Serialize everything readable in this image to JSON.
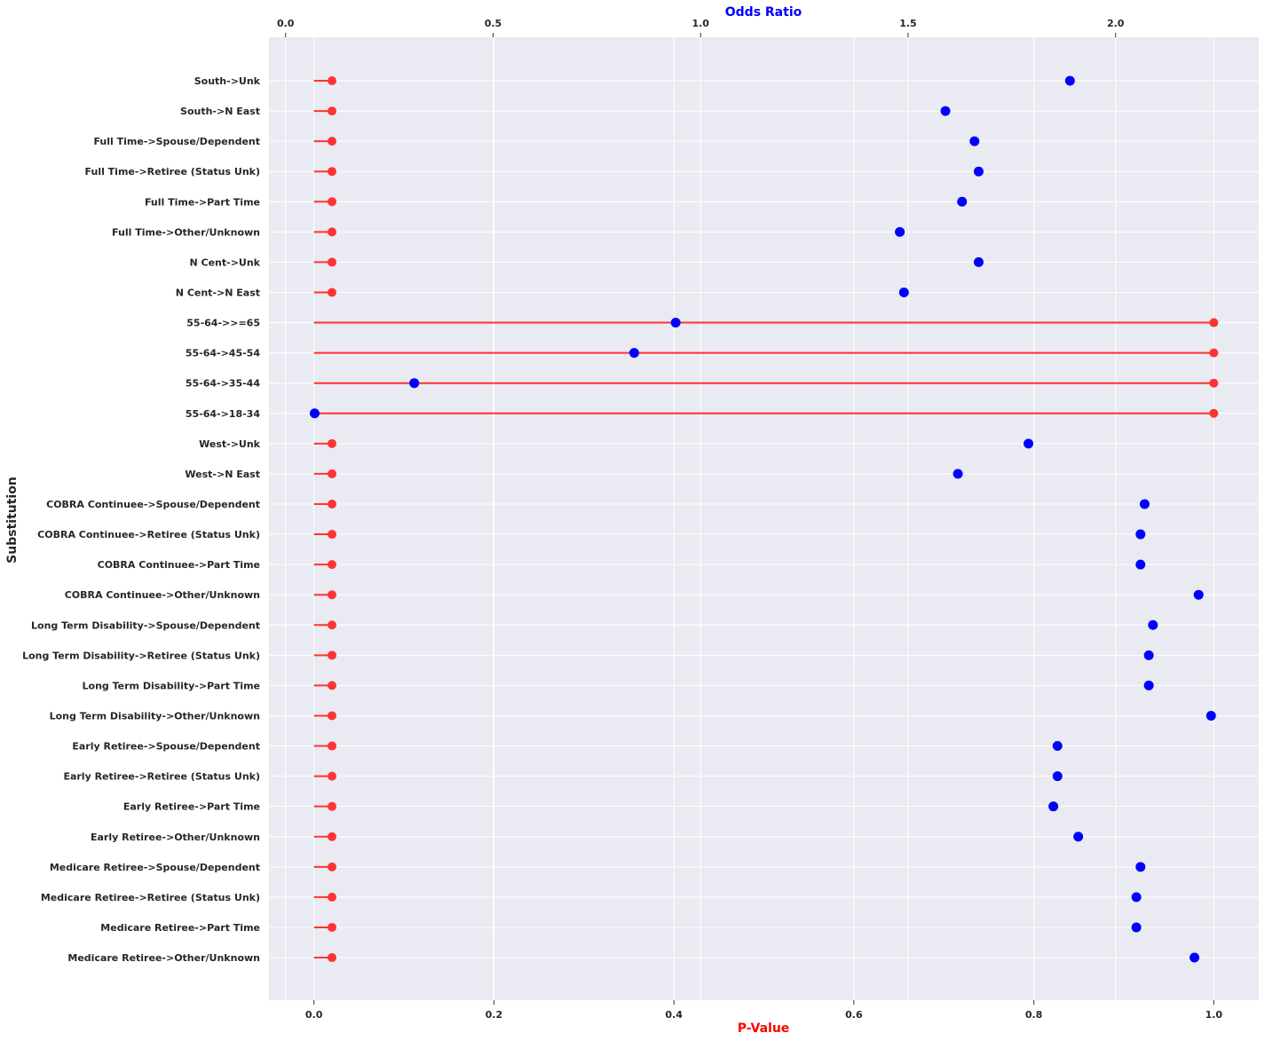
{
  "chart_data": {
    "type": "scatter",
    "subtype": "lollipop-dual-axis",
    "title": "",
    "ylabel": "Substitution",
    "xlabel_bottom": "P-Value",
    "xlabel_top": "Odds Ratio",
    "xlim_bottom": [
      -0.05,
      1.05
    ],
    "xticks_bottom": [
      "0.0",
      "0.2",
      "0.4",
      "0.6",
      "0.8",
      "1.0"
    ],
    "xticks_bottom_values": [
      0,
      0.2,
      0.4,
      0.6,
      0.8,
      1.0
    ],
    "xlim_top": [
      -0.04,
      2.345
    ],
    "xticks_top": [
      "0.0",
      "0.5",
      "1.0",
      "1.5",
      "2.0"
    ],
    "xticks_top_values": [
      0,
      0.5,
      1.0,
      1.5,
      2.0
    ],
    "grid": true,
    "colors": {
      "p_value": "#ff3333",
      "odds_ratio": "#0000ff",
      "background": "#eaeaf2",
      "grid": "#ffffff",
      "bottom_label": "#ff0000",
      "top_label": "#0000ff"
    },
    "categories": [
      "South->Unk",
      "South->N East",
      "Full Time->Spouse/Dependent",
      "Full Time->Retiree (Status Unk)",
      "Full Time->Part Time",
      "Full Time->Other/Unknown",
      "N Cent->Unk",
      "N Cent->N East",
      "55-64->>=65",
      "55-64->45-54",
      "55-64->35-44",
      "55-64->18-34",
      "West->Unk",
      "West->N East",
      "COBRA Continuee->Spouse/Dependent",
      "COBRA Continuee->Retiree (Status Unk)",
      "COBRA Continuee->Part Time",
      "COBRA Continuee->Other/Unknown",
      "Long Term Disability->Spouse/Dependent",
      "Long Term Disability->Retiree (Status Unk)",
      "Long Term Disability->Part Time",
      "Long Term Disability->Other/Unknown",
      "Early Retiree->Spouse/Dependent",
      "Early Retiree->Retiree (Status Unk)",
      "Early Retiree->Part Time",
      "Early Retiree->Other/Unknown",
      "Medicare Retiree->Spouse/Dependent",
      "Medicare Retiree->Retiree (Status Unk)",
      "Medicare Retiree->Part Time",
      "Medicare Retiree->Other/Unknown"
    ],
    "series": [
      {
        "name": "P-Value",
        "axis": "bottom",
        "values": [
          0.02,
          0.02,
          0.02,
          0.02,
          0.02,
          0.02,
          0.02,
          0.02,
          1.0,
          1.0,
          1.0,
          1.0,
          0.02,
          0.02,
          0.02,
          0.02,
          0.02,
          0.02,
          0.02,
          0.02,
          0.02,
          0.02,
          0.02,
          0.02,
          0.02,
          0.02,
          0.02,
          0.02,
          0.02,
          0.02
        ]
      },
      {
        "name": "Odds Ratio",
        "axis": "top",
        "values": [
          1.89,
          1.59,
          1.66,
          1.67,
          1.63,
          1.48,
          1.67,
          1.49,
          0.94,
          0.84,
          0.31,
          0.07,
          1.79,
          1.62,
          2.07,
          2.06,
          2.06,
          2.2,
          2.09,
          2.08,
          2.08,
          2.23,
          1.86,
          1.86,
          1.85,
          1.91,
          2.06,
          2.05,
          2.05,
          2.19
        ]
      }
    ]
  }
}
